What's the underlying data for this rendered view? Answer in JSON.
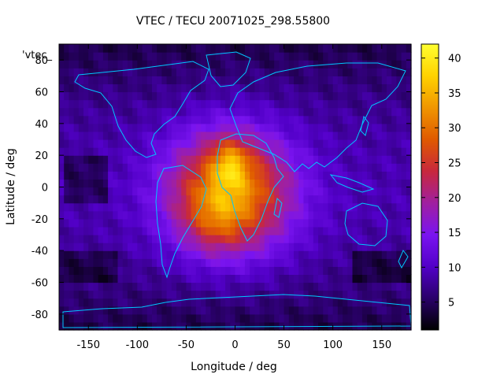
{
  "chart_data": {
    "type": "heatmap",
    "title": "VTEC / TECU 20071025_298.55800",
    "xlabel": "Longitude / deg",
    "ylabel": "Latitude / deg",
    "xlim": [
      -180,
      180
    ],
    "ylim": [
      -90,
      90
    ],
    "xticks": [
      -150,
      -100,
      -50,
      0,
      50,
      100,
      150
    ],
    "yticks": [
      -80,
      -60,
      -40,
      -20,
      0,
      20,
      40,
      60,
      80
    ],
    "legend_label": "'vtec_",
    "colorbar": {
      "range": [
        1,
        42
      ],
      "ticks": [
        5,
        10,
        15,
        20,
        25,
        30,
        35,
        40
      ],
      "palette": [
        "#000000",
        "#2a006a",
        "#5200c8",
        "#7a14f0",
        "#a020a0",
        "#c8283c",
        "#e05a00",
        "#f09600",
        "#ffd200",
        "#ffff30"
      ]
    },
    "peak": {
      "lon": -5,
      "lat": 15,
      "value": 41
    },
    "background_level": 9,
    "grid": false
  }
}
